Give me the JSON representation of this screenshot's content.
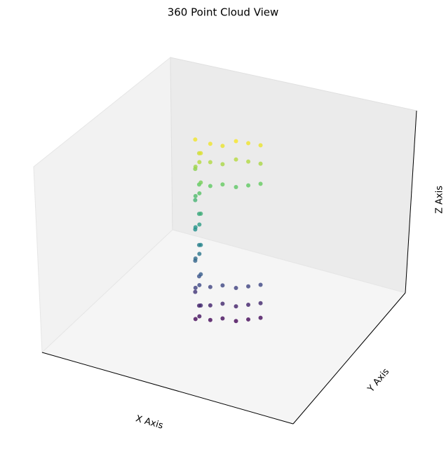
{
  "chart_data": {
    "type": "scatter3d",
    "title": "360 Point Cloud View",
    "xlabel": "X Axis",
    "ylabel": "Y Axis",
    "zlabel": "Z Axis",
    "colormap": "viridis",
    "xlim": [
      0,
      1
    ],
    "ylim": [
      0,
      1
    ],
    "zlim": [
      0,
      1
    ],
    "x": [
      0.41,
      0.43,
      0.42,
      0.44,
      0.4,
      0.41,
      0.43,
      0.42,
      0.44,
      0.4,
      0.41,
      0.43,
      0.42,
      0.44,
      0.4,
      0.41,
      0.43,
      0.42,
      0.44,
      0.4,
      0.41,
      0.43,
      0.42,
      0.44,
      0.4,
      0.41,
      0.43,
      0.42,
      0.44,
      0.4,
      0.46,
      0.5,
      0.54,
      0.58,
      0.62,
      0.46,
      0.5,
      0.54,
      0.58,
      0.62,
      0.46,
      0.5,
      0.54,
      0.58,
      0.62,
      0.46,
      0.5,
      0.54,
      0.58,
      0.62,
      0.46,
      0.5,
      0.54,
      0.58,
      0.62,
      0.46,
      0.5,
      0.54,
      0.58,
      0.62
    ],
    "y": [
      0.45,
      0.44,
      0.46,
      0.43,
      0.47,
      0.45,
      0.44,
      0.46,
      0.43,
      0.47,
      0.45,
      0.44,
      0.46,
      0.43,
      0.47,
      0.45,
      0.44,
      0.46,
      0.43,
      0.47,
      0.45,
      0.44,
      0.46,
      0.43,
      0.47,
      0.45,
      0.44,
      0.46,
      0.43,
      0.47,
      0.47,
      0.49,
      0.52,
      0.54,
      0.56,
      0.47,
      0.49,
      0.52,
      0.54,
      0.56,
      0.47,
      0.49,
      0.52,
      0.54,
      0.56,
      0.47,
      0.49,
      0.52,
      0.54,
      0.56,
      0.47,
      0.49,
      0.52,
      0.54,
      0.56,
      0.47,
      0.49,
      0.52,
      0.54,
      0.56
    ],
    "z": [
      0.02,
      0.05,
      0.09,
      0.12,
      0.15,
      0.19,
      0.22,
      0.25,
      0.29,
      0.32,
      0.35,
      0.39,
      0.42,
      0.45,
      0.49,
      0.52,
      0.55,
      0.59,
      0.62,
      0.65,
      0.69,
      0.72,
      0.75,
      0.79,
      0.82,
      0.85,
      0.89,
      0.92,
      0.95,
      0.98,
      0.98,
      0.97,
      0.99,
      0.98,
      0.97,
      0.88,
      0.87,
      0.89,
      0.88,
      0.87,
      0.75,
      0.76,
      0.74,
      0.75,
      0.76,
      0.2,
      0.21,
      0.19,
      0.2,
      0.21,
      0.1,
      0.11,
      0.09,
      0.1,
      0.11,
      0.02,
      0.03,
      0.01,
      0.02,
      0.03
    ]
  }
}
